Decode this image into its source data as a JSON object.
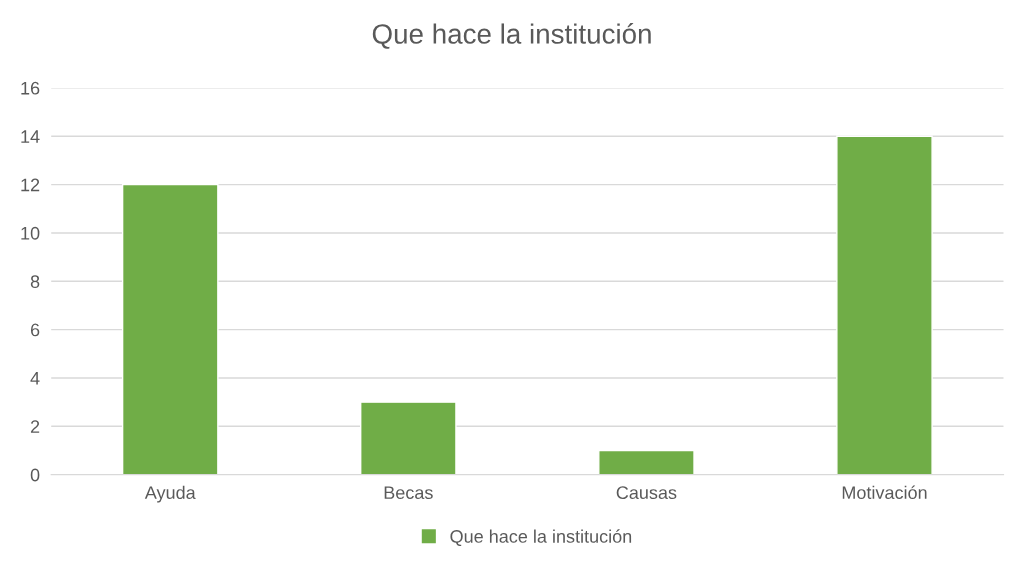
{
  "chart_data": {
    "type": "bar",
    "title": "Que hace la institución",
    "categories": [
      "Ayuda",
      "Becas",
      "Causas",
      "Motivación"
    ],
    "series": [
      {
        "name": "Que hace la institución",
        "color": "#70ad47",
        "values": [
          12,
          3,
          1,
          14
        ]
      }
    ],
    "ylim": [
      0,
      16
    ],
    "yticks": [
      0,
      2,
      4,
      6,
      8,
      10,
      12,
      14,
      16
    ],
    "grid": "y",
    "legend": "bottom"
  }
}
